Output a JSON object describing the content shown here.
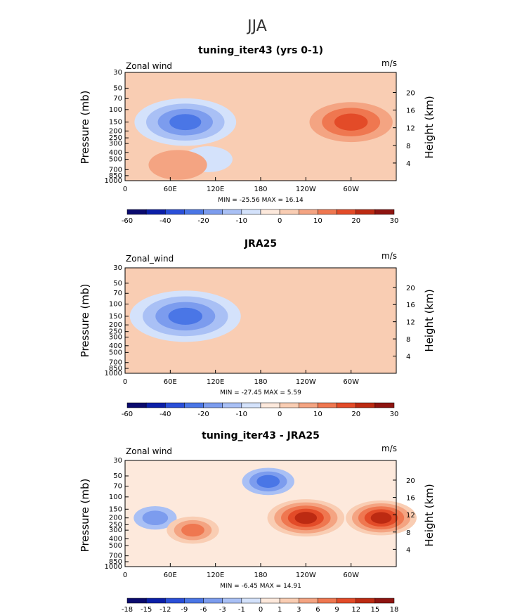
{
  "figure": {
    "title": "JJA"
  },
  "colors": {
    "scale": [
      "#0a0a6e",
      "#0b1fa8",
      "#2a4fd8",
      "#4a76e6",
      "#7c9cee",
      "#a9c0f5",
      "#d4e2fb",
      "#fde9dc",
      "#f9cdb3",
      "#f4a482",
      "#ef7750",
      "#e34b28",
      "#bc2a12",
      "#8e1410"
    ]
  },
  "shared": {
    "xticks": [
      "0",
      "60E",
      "120E",
      "180",
      "120W",
      "60W"
    ],
    "xtick_lon": [
      0,
      60,
      120,
      180,
      240,
      300
    ],
    "pticks": [
      "30",
      "50",
      "70",
      "100",
      "150",
      "200",
      "250",
      "300",
      "400",
      "500",
      "700",
      "850",
      "1000"
    ],
    "pvals": [
      30,
      50,
      70,
      100,
      150,
      200,
      250,
      300,
      400,
      500,
      700,
      850,
      1000
    ],
    "hticks": [
      "20",
      "16",
      "12",
      "8",
      "4"
    ],
    "hvals": [
      20,
      16,
      12,
      8,
      4
    ],
    "ylabel": "Pressure (mb)",
    "rlabel": "Height (km)",
    "xlim": [
      0,
      360
    ]
  },
  "chart_data": [
    {
      "type": "contour",
      "title": "tuning_iter43 (yrs 0-1)",
      "variable": "Zonal wind",
      "units": "m/s",
      "min": "-25.56",
      "max": "16.14",
      "stats": "MIN = -25.56  MAX =  16.14",
      "levels": [
        "-60",
        "-50",
        "-40",
        "-30",
        "-20",
        "-15",
        "-10",
        "-5",
        "0",
        "5",
        "10",
        "15",
        "20",
        "25",
        "30"
      ],
      "colorbar_labels": [
        "-60",
        "-40",
        "-20",
        "-10",
        "0",
        "10",
        "20",
        "30"
      ],
      "ylim_mb": [
        1000,
        30
      ],
      "features": [
        {
          "lon": 80,
          "p": 150,
          "value": -22
        },
        {
          "lon": 110,
          "p": 500,
          "value": -5
        },
        {
          "lon": 300,
          "p": 150,
          "value": 16
        },
        {
          "lon": 70,
          "p": 600,
          "value": 8
        },
        {
          "lon": 220,
          "p": 700,
          "value": -3
        }
      ]
    },
    {
      "type": "contour",
      "title": "JRA25",
      "variable": "Zonal_wind",
      "units": "m/s",
      "min": "-27.45",
      "max": "5.59",
      "stats": "MIN = -27.45  MAX =   5.59",
      "levels": [
        "-60",
        "-50",
        "-40",
        "-30",
        "-20",
        "-15",
        "-10",
        "-5",
        "0",
        "5",
        "10",
        "15",
        "20",
        "25",
        "30"
      ],
      "colorbar_labels": [
        "-60",
        "-40",
        "-20",
        "-10",
        "0",
        "10",
        "20",
        "30"
      ],
      "ylim_mb": [
        1000,
        30
      ],
      "features": [
        {
          "lon": 80,
          "p": 150,
          "value": -25
        },
        {
          "lon": 260,
          "p": 100,
          "value": 4
        },
        {
          "lon": 90,
          "p": 500,
          "value": 3
        }
      ]
    },
    {
      "type": "contour",
      "title": "tuning_iter43 - JRA25",
      "variable": "Zonal wind",
      "units": "m/s",
      "min": "-6.45",
      "max": "14.91",
      "stats": "MIN =  -6.45  MAX =  14.91",
      "levels": [
        "-18",
        "-15",
        "-12",
        "-9",
        "-6",
        "-3",
        "-1",
        "0",
        "1",
        "3",
        "6",
        "9",
        "12",
        "15",
        "18"
      ],
      "colorbar_labels": [
        "-18",
        "-15",
        "-12",
        "-9",
        "-6",
        "-3",
        "-1",
        "0",
        "1",
        "3",
        "6",
        "9",
        "12",
        "15",
        "18"
      ],
      "ylim_mb": [
        1000,
        30
      ],
      "features": [
        {
          "lon": 190,
          "p": 60,
          "value": -6
        },
        {
          "lon": 40,
          "p": 200,
          "value": -3
        },
        {
          "lon": 240,
          "p": 200,
          "value": 14
        },
        {
          "lon": 340,
          "p": 200,
          "value": 12
        },
        {
          "lon": 90,
          "p": 300,
          "value": 6
        }
      ]
    }
  ]
}
